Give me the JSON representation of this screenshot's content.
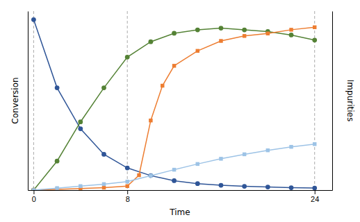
{
  "chart_data": {
    "type": "line",
    "xlabel": "Time",
    "ylabel": "Conversion",
    "y2label": "Impurities",
    "xlim": [
      -0.5,
      25.5
    ],
    "xticks": [
      0,
      8,
      24
    ],
    "ylim": [
      0,
      1.05
    ],
    "y2lim": [
      0,
      0.72
    ],
    "tick_labels": "x",
    "grid": false,
    "vlines": [
      0,
      8,
      24
    ],
    "series": [
      {
        "color": "#2f5597",
        "marker": "circle",
        "x": [
          0,
          2,
          4,
          6,
          8,
          10,
          12,
          14,
          16,
          18,
          20,
          22,
          24
        ],
        "values": [
          1.0,
          0.6,
          0.36,
          0.21,
          0.13,
          0.085,
          0.055,
          0.038,
          0.028,
          0.022,
          0.018,
          0.014,
          0.012
        ]
      },
      {
        "color": "#548235",
        "marker": "circle",
        "x": [
          0,
          2,
          4,
          6,
          8,
          10,
          12,
          14,
          16,
          18,
          20,
          22,
          24
        ],
        "values": [
          0.0,
          0.17,
          0.4,
          0.6,
          0.78,
          0.87,
          0.92,
          0.94,
          0.95,
          0.94,
          0.93,
          0.91,
          0.88
        ]
      },
      {
        "color": "#ed7d31",
        "marker": "square",
        "axis": "y2",
        "x": [
          0,
          2,
          4,
          6,
          8,
          9,
          10,
          11,
          12,
          14,
          16,
          18,
          20,
          22,
          24
        ],
        "values": [
          0.0,
          0.003,
          0.006,
          0.01,
          0.016,
          0.06,
          0.28,
          0.42,
          0.5,
          0.56,
          0.6,
          0.62,
          0.63,
          0.645,
          0.655
        ]
      },
      {
        "color": "#9dc3e6",
        "marker": "square",
        "axis": "y2",
        "x": [
          0,
          2,
          4,
          6,
          8,
          10,
          12,
          14,
          16,
          18,
          20,
          22,
          24
        ],
        "values": [
          0.0,
          0.008,
          0.016,
          0.024,
          0.034,
          0.058,
          0.082,
          0.105,
          0.126,
          0.144,
          0.16,
          0.174,
          0.185
        ]
      }
    ]
  }
}
